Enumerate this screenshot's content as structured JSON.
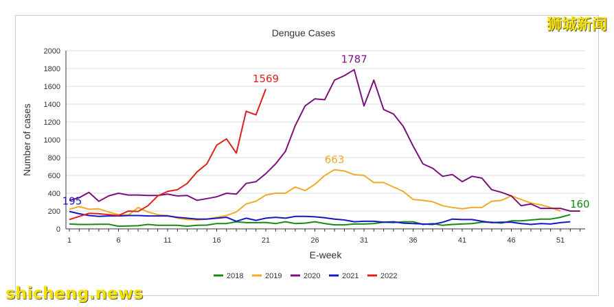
{
  "watermarks": {
    "top": "狮城新闻",
    "bottom": "shicheng.news"
  },
  "chart_data": {
    "type": "line",
    "title": "Dengue Cases",
    "xlabel": "E-week",
    "ylabel": "Number of cases",
    "ylim": [
      0,
      2000
    ],
    "yticks": [
      0,
      200,
      400,
      600,
      800,
      1000,
      1200,
      1400,
      1600,
      1800,
      2000
    ],
    "xticks": [
      1,
      6,
      11,
      16,
      21,
      26,
      31,
      36,
      41,
      46,
      51
    ],
    "xlim": [
      1,
      53
    ],
    "grid": true,
    "legend": "bottom",
    "series": [
      {
        "name": "2018",
        "color": "#138a13",
        "values": [
          55,
          50,
          50,
          52,
          52,
          30,
          32,
          35,
          50,
          40,
          40,
          40,
          30,
          40,
          42,
          60,
          60,
          80,
          70,
          70,
          72,
          60,
          80,
          60,
          65,
          80,
          60,
          45,
          45,
          55,
          55,
          60,
          75,
          70,
          80,
          80,
          50,
          60,
          40,
          50,
          55,
          60,
          75,
          75,
          65,
          90,
          90,
          100,
          110,
          110,
          130,
          160
        ],
        "label": "160",
        "label_week": 52
      },
      {
        "name": "2019",
        "color": "#f0aa28",
        "values": [
          220,
          250,
          220,
          225,
          190,
          160,
          155,
          240,
          190,
          160,
          150,
          120,
          105,
          100,
          110,
          130,
          150,
          190,
          280,
          310,
          380,
          400,
          400,
          470,
          430,
          500,
          600,
          663,
          650,
          610,
          600,
          520,
          520,
          470,
          420,
          330,
          320,
          305,
          260,
          240,
          225,
          240,
          240,
          310,
          320,
          370,
          330,
          290,
          270,
          240,
          200
        ],
        "label": "663",
        "label_week": 28
      },
      {
        "name": "2020",
        "color": "#7b0f7b",
        "values": [
          320,
          350,
          410,
          310,
          370,
          400,
          380,
          380,
          375,
          375,
          390,
          370,
          375,
          320,
          340,
          360,
          400,
          390,
          510,
          530,
          620,
          730,
          870,
          1160,
          1380,
          1460,
          1450,
          1670,
          1720,
          1787,
          1380,
          1670,
          1340,
          1290,
          1150,
          930,
          730,
          680,
          590,
          610,
          530,
          590,
          570,
          440,
          410,
          370,
          260,
          280,
          230,
          230,
          230,
          200,
          200
        ],
        "label": "1787",
        "label_week": 30
      },
      {
        "name": "2021",
        "color": "#1414c8",
        "values": [
          195,
          170,
          150,
          140,
          145,
          145,
          150,
          150,
          145,
          145,
          145,
          130,
          120,
          110,
          110,
          120,
          130,
          85,
          120,
          95,
          120,
          130,
          120,
          140,
          140,
          135,
          125,
          110,
          100,
          80,
          85,
          85,
          75,
          80,
          65,
          60,
          55,
          50,
          75,
          110,
          105,
          105,
          85,
          70,
          75,
          75,
          60,
          50,
          60,
          55,
          70,
          80
        ],
        "label": "195",
        "label_week": 1
      },
      {
        "name": "2022",
        "color": "#e01e1e",
        "values": [
          105,
          140,
          175,
          170,
          160,
          150,
          200,
          195,
          260,
          370,
          420,
          440,
          510,
          640,
          730,
          940,
          1010,
          850,
          1320,
          1280,
          1569
        ],
        "label": "1569",
        "label_week": 21
      }
    ]
  }
}
